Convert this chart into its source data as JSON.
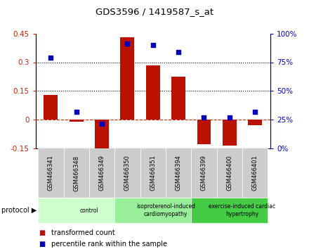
{
  "title": "GDS3596 / 1419587_s_at",
  "samples": [
    "GSM466341",
    "GSM466348",
    "GSM466349",
    "GSM466350",
    "GSM466351",
    "GSM466394",
    "GSM466399",
    "GSM466400",
    "GSM466401"
  ],
  "transformed_count": [
    0.13,
    -0.01,
    -0.185,
    0.43,
    0.285,
    0.225,
    -0.13,
    -0.135,
    -0.03
  ],
  "percentile_rank": [
    0.79,
    0.32,
    0.21,
    0.91,
    0.9,
    0.84,
    0.265,
    0.265,
    0.32
  ],
  "bar_color": "#bb1100",
  "dot_color": "#0000bb",
  "ylim_left": [
    -0.15,
    0.45
  ],
  "ylim_right": [
    0.0,
    1.0
  ],
  "yticks_left": [
    -0.15,
    0.0,
    0.15,
    0.3,
    0.45
  ],
  "ytick_labels_left": [
    "-0.15",
    "0",
    "0.15",
    "0.3",
    "0.45"
  ],
  "yticks_right": [
    0.0,
    0.25,
    0.5,
    0.75,
    1.0
  ],
  "ytick_labels_right": [
    "0%",
    "25%",
    "50%",
    "75%",
    "100%"
  ],
  "hlines": [
    0.15,
    0.3
  ],
  "hline_zero_color": "#cc2200",
  "hline_dotted_color": "#000000",
  "protocol_groups": [
    {
      "label": "control",
      "start": 0,
      "end": 3,
      "color": "#ccffcc"
    },
    {
      "label": "isoproterenol-induced\ncardiomyopathy",
      "start": 3,
      "end": 6,
      "color": "#99ee99"
    },
    {
      "label": "exercise-induced cardiac\nhypertrophy",
      "start": 6,
      "end": 9,
      "color": "#44cc44"
    }
  ],
  "protocol_label": "protocol",
  "legend_bar_label": "transformed count",
  "legend_dot_label": "percentile rank within the sample",
  "bar_width": 0.55,
  "dot_size": 25,
  "bg_color": "#ffffff",
  "plot_bg_color": "#ffffff",
  "sample_bg_color": "#cccccc"
}
